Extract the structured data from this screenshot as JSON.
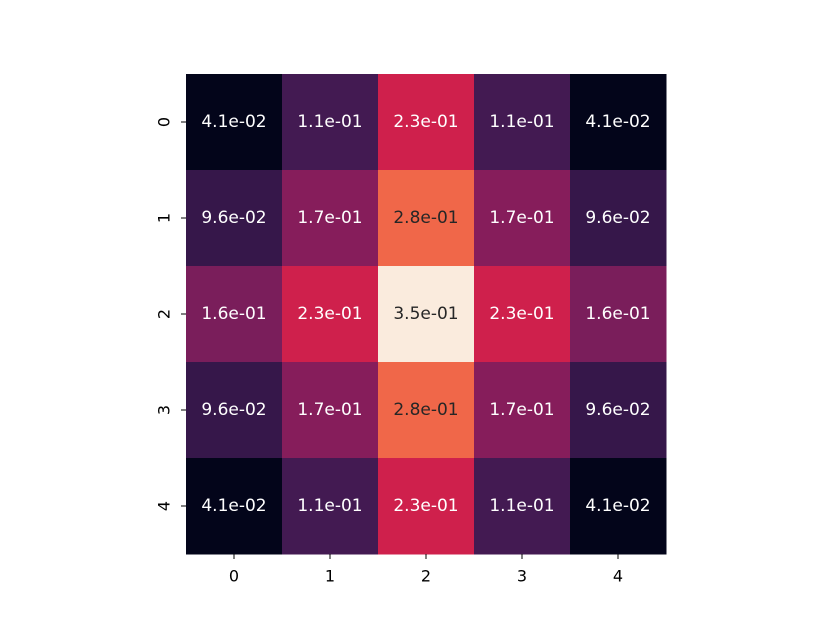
{
  "chart_data": {
    "type": "heatmap",
    "title": "",
    "xlabel": "",
    "ylabel": "",
    "x_categories": [
      "0",
      "1",
      "2",
      "3",
      "4"
    ],
    "y_categories": [
      "0",
      "1",
      "2",
      "3",
      "4"
    ],
    "values": [
      [
        0.041,
        0.11,
        0.23,
        0.11,
        0.041
      ],
      [
        0.096,
        0.17,
        0.28,
        0.17,
        0.096
      ],
      [
        0.16,
        0.23,
        0.35,
        0.23,
        0.16
      ],
      [
        0.096,
        0.17,
        0.28,
        0.17,
        0.096
      ],
      [
        0.041,
        0.11,
        0.23,
        0.11,
        0.041
      ]
    ],
    "labels": [
      [
        "4.1e-02",
        "1.1e-01",
        "2.3e-01",
        "1.1e-01",
        "4.1e-02"
      ],
      [
        "9.6e-02",
        "1.7e-01",
        "2.8e-01",
        "1.7e-01",
        "9.6e-02"
      ],
      [
        "1.6e-01",
        "2.3e-01",
        "3.5e-01",
        "2.3e-01",
        "1.6e-01"
      ],
      [
        "9.6e-02",
        "1.7e-01",
        "2.8e-01",
        "1.7e-01",
        "9.6e-02"
      ],
      [
        "4.1e-02",
        "1.1e-01",
        "2.3e-01",
        "1.1e-01",
        "4.1e-02"
      ]
    ],
    "colormap": "rocket",
    "value_range": [
      0.041,
      0.35
    ],
    "colorbar": false,
    "grid": false,
    "y_tick_rotation": "vertical"
  }
}
